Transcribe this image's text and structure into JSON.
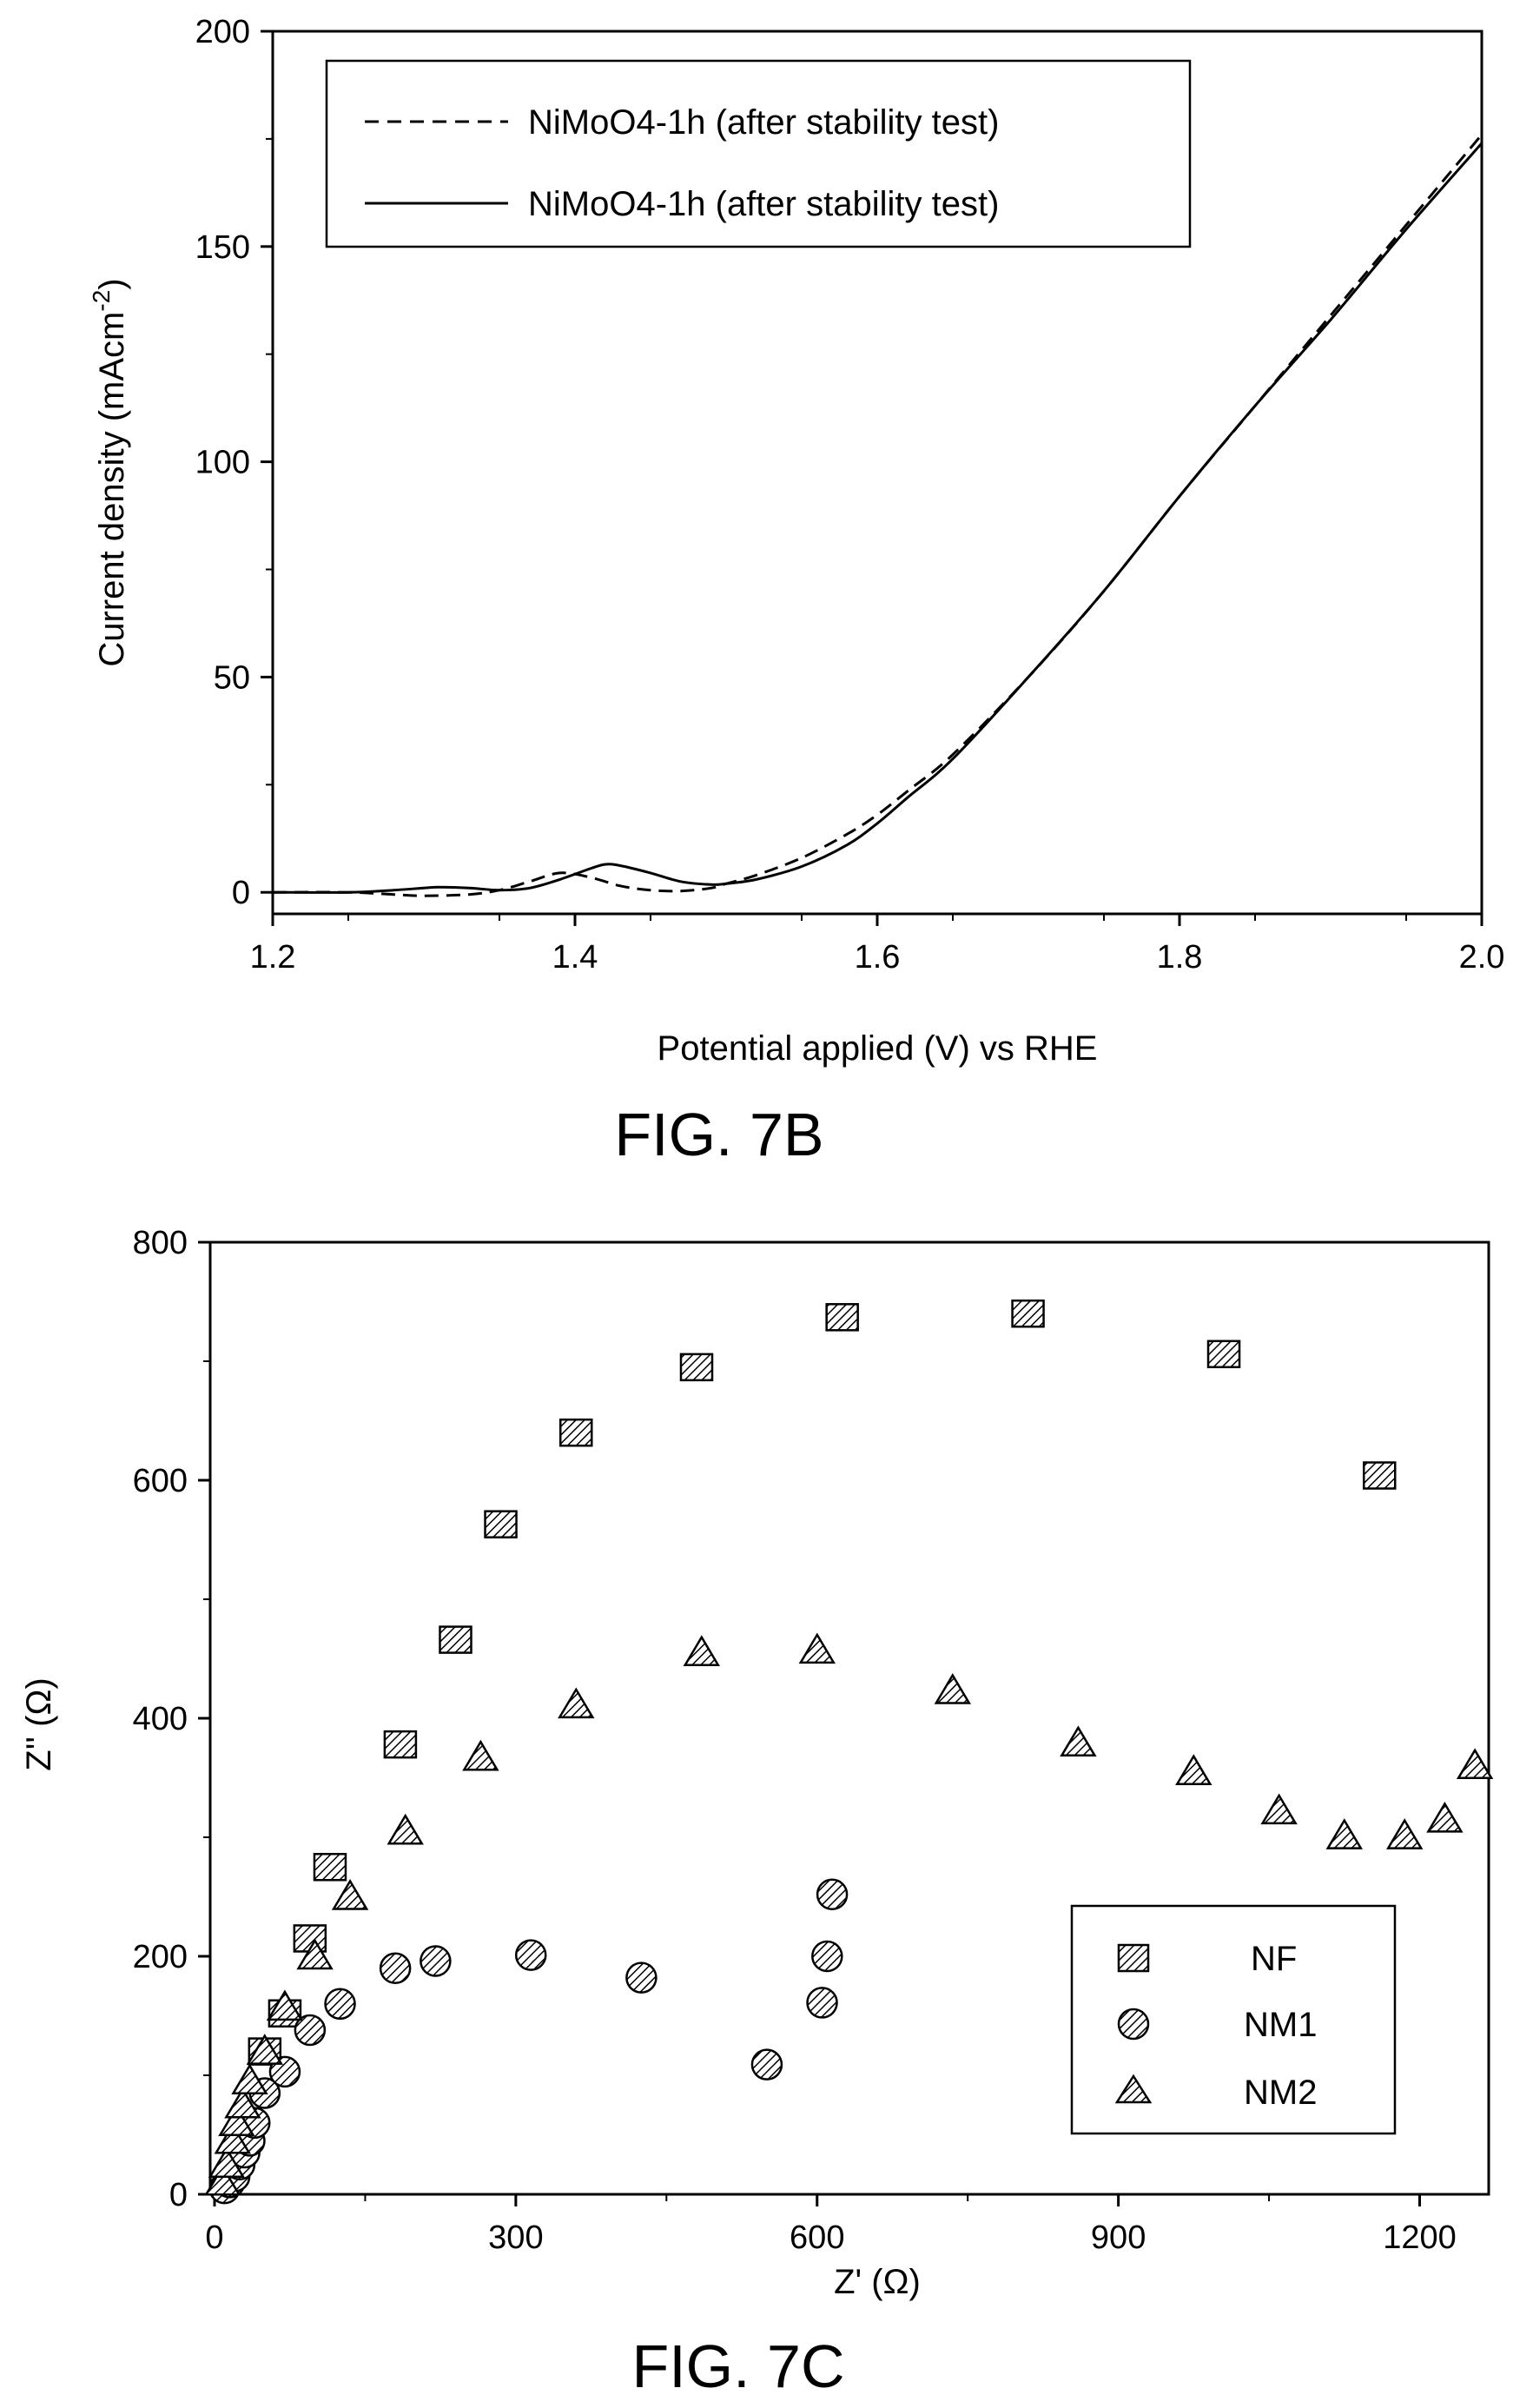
{
  "figures": {
    "fig7b_caption": "FIG. 7B",
    "fig7c_caption": "FIG. 7C"
  },
  "chart_data": [
    {
      "type": "line",
      "xlabel": "Potential applied (V) vs RHE",
      "ylabel_main": "Current density (mAcm",
      "ylabel_sup": "-2",
      "ylabel_close": ")",
      "xlim": [
        1.2,
        2.0
      ],
      "ylim": [
        -5,
        200
      ],
      "xticks": [
        1.2,
        1.4,
        1.6,
        1.8,
        2.0
      ],
      "xtick_labels": [
        "1.2",
        "1.4",
        "1.6",
        "1.8",
        "2.0"
      ],
      "yticks": [
        0,
        50,
        100,
        150,
        200
      ],
      "ytick_labels": [
        "0",
        "50",
        "100",
        "150",
        "200"
      ],
      "grid": false,
      "legend_position": "top-left",
      "series": [
        {
          "name": "NiMoO4-1h (after stability test)",
          "style": "dashed",
          "x": [
            1.2,
            1.25,
            1.28,
            1.3,
            1.33,
            1.35,
            1.37,
            1.39,
            1.41,
            1.43,
            1.45,
            1.47,
            1.49,
            1.5,
            1.52,
            1.55,
            1.58,
            1.6,
            1.62,
            1.65,
            1.7,
            1.75,
            1.8,
            1.85,
            1.9,
            1.95,
            2.0
          ],
          "y": [
            0,
            0,
            -0.5,
            -0.8,
            -0.5,
            0.5,
            2.5,
            4.5,
            3.5,
            1.5,
            0.5,
            0.3,
            1.0,
            2.0,
            4.0,
            8.0,
            13.5,
            18.0,
            23.5,
            32.0,
            50.0,
            70.0,
            92.0,
            113.0,
            134.0,
            155.0,
            176.0
          ]
        },
        {
          "name": "NiMoO4-1h (after stability test)",
          "style": "solid",
          "x": [
            1.2,
            1.25,
            1.28,
            1.3,
            1.31,
            1.33,
            1.35,
            1.37,
            1.39,
            1.41,
            1.42,
            1.43,
            1.45,
            1.47,
            1.49,
            1.5,
            1.52,
            1.55,
            1.58,
            1.6,
            1.62,
            1.65,
            1.7,
            1.75,
            1.8,
            1.85,
            1.9,
            1.95,
            2.0
          ],
          "y": [
            0,
            0,
            0.5,
            1.0,
            1.2,
            1.0,
            0.5,
            1.0,
            3.0,
            5.5,
            6.5,
            6.2,
            4.5,
            2.5,
            1.8,
            2.0,
            3.0,
            6.0,
            11.0,
            16.0,
            22.0,
            31.0,
            50.0,
            70.0,
            92.0,
            113.0,
            133.0,
            154.0,
            174.0
          ]
        }
      ]
    },
    {
      "type": "scatter",
      "xlabel": "Z' (Ω)",
      "ylabel": "Z'' (Ω)",
      "xlim": [
        0,
        1280
      ],
      "ylim": [
        0,
        800
      ],
      "xticks": [
        0,
        300,
        600,
        900,
        1200
      ],
      "xtick_labels": [
        "0",
        "300",
        "600",
        "900",
        "1200"
      ],
      "yticks": [
        0,
        200,
        400,
        600,
        800
      ],
      "ytick_labels": [
        "0",
        "200",
        "400",
        "600",
        "800"
      ],
      "grid": false,
      "legend_position": "bottom-right",
      "series": [
        {
          "name": "NF",
          "marker": "square",
          "points": [
            [
              50,
              120
            ],
            [
              70,
              152
            ],
            [
              95,
              215
            ],
            [
              115,
              275
            ],
            [
              185,
              378
            ],
            [
              240,
              466
            ],
            [
              285,
              563
            ],
            [
              360,
              640
            ],
            [
              480,
              695
            ],
            [
              625,
              737
            ],
            [
              810,
              740
            ],
            [
              1005,
              706
            ],
            [
              1160,
              604
            ]
          ]
        },
        {
          "name": "NM1",
          "marker": "circle",
          "points": [
            [
              10,
              5
            ],
            [
              15,
              10
            ],
            [
              20,
              15
            ],
            [
              25,
              25
            ],
            [
              30,
              35
            ],
            [
              35,
              45
            ],
            [
              40,
              60
            ],
            [
              50,
              85
            ],
            [
              70,
              103
            ],
            [
              95,
              138
            ],
            [
              125,
              160
            ],
            [
              180,
              190
            ],
            [
              220,
              196
            ],
            [
              315,
              201
            ],
            [
              425,
              182
            ],
            [
              550,
              109
            ],
            [
              605,
              161
            ],
            [
              610,
              200
            ],
            [
              615,
              252
            ]
          ]
        },
        {
          "name": "NM2",
          "marker": "triangle",
          "points": [
            [
              8,
              10
            ],
            [
              12,
              25
            ],
            [
              18,
              45
            ],
            [
              22,
              60
            ],
            [
              28,
              75
            ],
            [
              35,
              95
            ],
            [
              50,
              120
            ],
            [
              70,
              157
            ],
            [
              100,
              200
            ],
            [
              135,
              250
            ],
            [
              190,
              305
            ],
            [
              265,
              367
            ],
            [
              360,
              411
            ],
            [
              485,
              455
            ],
            [
              600,
              457
            ],
            [
              735,
              423
            ],
            [
              860,
              379
            ],
            [
              975,
              355
            ],
            [
              1060,
              322
            ],
            [
              1125,
              301
            ],
            [
              1185,
              301
            ],
            [
              1225,
              315
            ],
            [
              1255,
              360
            ]
          ]
        }
      ]
    }
  ]
}
